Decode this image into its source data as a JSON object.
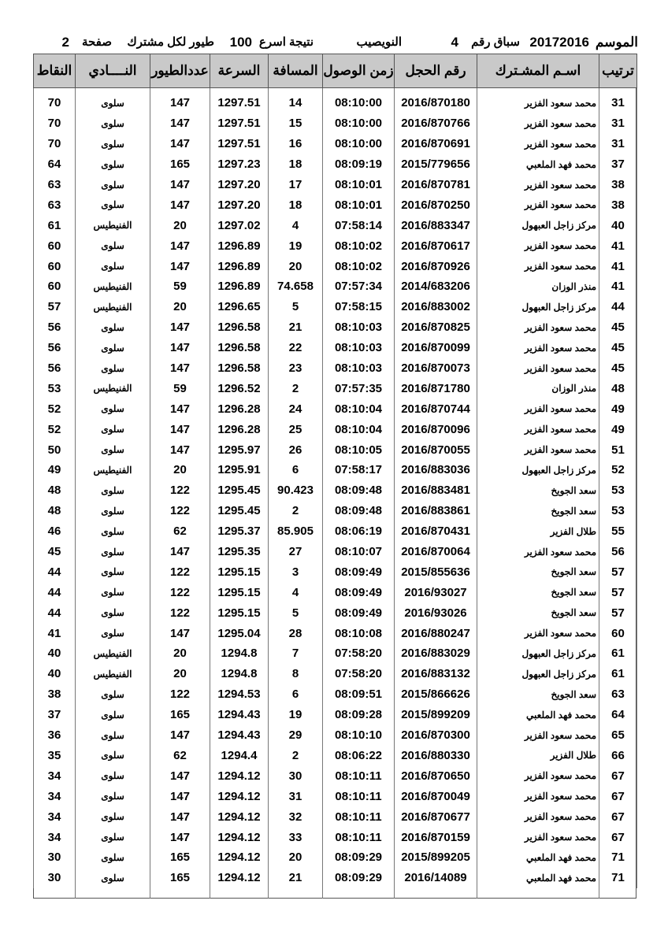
{
  "header": {
    "season_label": "الموسم",
    "season": "20172016",
    "race_label": "سباق رقم",
    "race_number": "4",
    "location": "النويصيب",
    "result_label": "نتيجة اسرع",
    "result_count": "100",
    "per_member_label": "طيور لكل مشترك",
    "page_label": "صفحة",
    "page_number": "2"
  },
  "columns": [
    "ترتيب",
    "اسـم المشـترك",
    "رقم الحجل",
    "زمن الوصول",
    "المسافة",
    "السرعة",
    "عددالطيور",
    "النــــادي",
    "النقاط"
  ],
  "rows": [
    [
      "31",
      "محمد سعود الفزير",
      "2016/870180",
      "08:10:00",
      "14",
      "1297.51",
      "147",
      "سلوى",
      "70"
    ],
    [
      "31",
      "محمد سعود الفزير",
      "2016/870766",
      "08:10:00",
      "15",
      "1297.51",
      "147",
      "سلوى",
      "70"
    ],
    [
      "31",
      "محمد سعود الفزير",
      "2016/870691",
      "08:10:00",
      "16",
      "1297.51",
      "147",
      "سلوى",
      "70"
    ],
    [
      "37",
      "محمد فهد الملعبي",
      "2015/779656",
      "08:09:19",
      "18",
      "1297.23",
      "165",
      "سلوى",
      "64"
    ],
    [
      "38",
      "محمد سعود الفزير",
      "2016/870781",
      "08:10:01",
      "17",
      "1297.20",
      "147",
      "سلوى",
      "63"
    ],
    [
      "38",
      "محمد سعود الفزير",
      "2016/870250",
      "08:10:01",
      "18",
      "1297.20",
      "147",
      "سلوى",
      "63"
    ],
    [
      "40",
      "مركز زاجل العبهول",
      "2016/883347",
      "07:58:14",
      "4",
      "1297.02",
      "20",
      "الفنيطيس",
      "61"
    ],
    [
      "41",
      "محمد سعود الفزير",
      "2016/870617",
      "08:10:02",
      "19",
      "1296.89",
      "147",
      "سلوى",
      "60"
    ],
    [
      "41",
      "محمد سعود الفزير",
      "2016/870926",
      "08:10:02",
      "20",
      "1296.89",
      "147",
      "سلوى",
      "60"
    ],
    [
      "41",
      "منذر الوزان",
      "2014/683206",
      "07:57:34",
      "74.658",
      "1296.89",
      "59",
      "الفنيطيس",
      "60"
    ],
    [
      "44",
      "مركز زاجل العبهول",
      "2016/883002",
      "07:58:15",
      "5",
      "1296.65",
      "20",
      "الفنيطيس",
      "57"
    ],
    [
      "45",
      "محمد سعود الفزير",
      "2016/870825",
      "08:10:03",
      "21",
      "1296.58",
      "147",
      "سلوى",
      "56"
    ],
    [
      "45",
      "محمد سعود الفزير",
      "2016/870099",
      "08:10:03",
      "22",
      "1296.58",
      "147",
      "سلوى",
      "56"
    ],
    [
      "45",
      "محمد سعود الفزير",
      "2016/870073",
      "08:10:03",
      "23",
      "1296.58",
      "147",
      "سلوى",
      "56"
    ],
    [
      "48",
      "منذر الوزان",
      "2016/871780",
      "07:57:35",
      "2",
      "1296.52",
      "59",
      "الفنيطيس",
      "53"
    ],
    [
      "49",
      "محمد سعود الفزير",
      "2016/870744",
      "08:10:04",
      "24",
      "1296.28",
      "147",
      "سلوى",
      "52"
    ],
    [
      "49",
      "محمد سعود الفزير",
      "2016/870096",
      "08:10:04",
      "25",
      "1296.28",
      "147",
      "سلوى",
      "52"
    ],
    [
      "51",
      "محمد سعود الفزير",
      "2016/870055",
      "08:10:05",
      "26",
      "1295.97",
      "147",
      "سلوى",
      "50"
    ],
    [
      "52",
      "مركز زاجل العبهول",
      "2016/883036",
      "07:58:17",
      "6",
      "1295.91",
      "20",
      "الفنيطيس",
      "49"
    ],
    [
      "53",
      "سعد الجويخ",
      "2016/883481",
      "08:09:48",
      "90.423",
      "1295.45",
      "122",
      "سلوى",
      "48"
    ],
    [
      "53",
      "سعد الجويخ",
      "2016/883861",
      "08:09:48",
      "2",
      "1295.45",
      "122",
      "سلوى",
      "48"
    ],
    [
      "55",
      "طلال الفزير",
      "2016/870431",
      "08:06:19",
      "85.905",
      "1295.37",
      "62",
      "سلوى",
      "46"
    ],
    [
      "56",
      "محمد سعود الفزير",
      "2016/870064",
      "08:10:07",
      "27",
      "1295.35",
      "147",
      "سلوى",
      "45"
    ],
    [
      "57",
      "سعد الجويخ",
      "2015/855636",
      "08:09:49",
      "3",
      "1295.15",
      "122",
      "سلوى",
      "44"
    ],
    [
      "57",
      "سعد الجويخ",
      "2016/93027",
      "08:09:49",
      "4",
      "1295.15",
      "122",
      "سلوى",
      "44"
    ],
    [
      "57",
      "سعد الجويخ",
      "2016/93026",
      "08:09:49",
      "5",
      "1295.15",
      "122",
      "سلوى",
      "44"
    ],
    [
      "60",
      "محمد سعود الفزير",
      "2016/880247",
      "08:10:08",
      "28",
      "1295.04",
      "147",
      "سلوى",
      "41"
    ],
    [
      "61",
      "مركز زاجل العبهول",
      "2016/883029",
      "07:58:20",
      "7",
      "1294.8",
      "20",
      "الفنيطيس",
      "40"
    ],
    [
      "61",
      "مركز زاجل العبهول",
      "2016/883132",
      "07:58:20",
      "8",
      "1294.8",
      "20",
      "الفنيطيس",
      "40"
    ],
    [
      "63",
      "سعد الجويخ",
      "2015/866626",
      "08:09:51",
      "6",
      "1294.53",
      "122",
      "سلوى",
      "38"
    ],
    [
      "64",
      "محمد فهد الملعبي",
      "2015/899209",
      "08:09:28",
      "19",
      "1294.43",
      "165",
      "سلوى",
      "37"
    ],
    [
      "65",
      "محمد سعود الفزير",
      "2016/870300",
      "08:10:10",
      "29",
      "1294.43",
      "147",
      "سلوى",
      "36"
    ],
    [
      "66",
      "طلال الفزير",
      "2016/880330",
      "08:06:22",
      "2",
      "1294.4",
      "62",
      "سلوى",
      "35"
    ],
    [
      "67",
      "محمد سعود الفزير",
      "2016/870650",
      "08:10:11",
      "30",
      "1294.12",
      "147",
      "سلوى",
      "34"
    ],
    [
      "67",
      "محمد سعود الفزير",
      "2016/870049",
      "08:10:11",
      "31",
      "1294.12",
      "147",
      "سلوى",
      "34"
    ],
    [
      "67",
      "محمد سعود الفزير",
      "2016/870677",
      "08:10:11",
      "32",
      "1294.12",
      "147",
      "سلوى",
      "34"
    ],
    [
      "67",
      "محمد سعود الفزير",
      "2016/870159",
      "08:10:11",
      "33",
      "1294.12",
      "147",
      "سلوى",
      "34"
    ],
    [
      "71",
      "محمد فهد الملعبي",
      "2015/899205",
      "08:09:29",
      "20",
      "1294.12",
      "165",
      "سلوى",
      "30"
    ],
    [
      "71",
      "محمد فهد الملعبي",
      "2016/14089",
      "08:09:29",
      "21",
      "1294.12",
      "165",
      "سلوى",
      "30"
    ]
  ]
}
